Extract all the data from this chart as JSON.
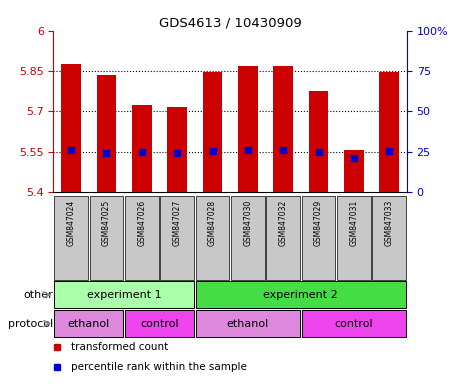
{
  "title": "GDS4613 / 10430909",
  "samples": [
    "GSM847024",
    "GSM847025",
    "GSM847026",
    "GSM847027",
    "GSM847028",
    "GSM847030",
    "GSM847032",
    "GSM847029",
    "GSM847031",
    "GSM847033"
  ],
  "transformed_counts": [
    5.875,
    5.835,
    5.725,
    5.718,
    5.845,
    5.867,
    5.87,
    5.775,
    5.555,
    5.845
  ],
  "percentile_ranks_val": [
    5.556,
    5.545,
    5.548,
    5.545,
    5.552,
    5.556,
    5.556,
    5.548,
    5.528,
    5.552
  ],
  "ylim_left": [
    5.4,
    6.0
  ],
  "ylim_right": [
    0,
    100
  ],
  "yticks_left": [
    5.4,
    5.55,
    5.7,
    5.85,
    6.0
  ],
  "yticks_left_labels": [
    "5.4",
    "5.55",
    "5.7",
    "5.85",
    "6"
  ],
  "yticks_right": [
    0,
    25,
    50,
    75,
    100
  ],
  "yticks_right_labels": [
    "0",
    "25",
    "50",
    "75",
    "100%"
  ],
  "bar_color": "#cc0000",
  "dot_color": "#0000cc",
  "sample_bg_color": "#c8c8c8",
  "other_groups": [
    {
      "label": "experiment 1",
      "start": 0,
      "end": 4,
      "color": "#aaffaa"
    },
    {
      "label": "experiment 2",
      "start": 4,
      "end": 10,
      "color": "#44dd44"
    }
  ],
  "protocol_groups": [
    {
      "label": "ethanol",
      "start": 0,
      "end": 2,
      "color": "#dd88dd"
    },
    {
      "label": "control",
      "start": 2,
      "end": 4,
      "color": "#ee44ee"
    },
    {
      "label": "ethanol",
      "start": 4,
      "end": 7,
      "color": "#dd88dd"
    },
    {
      "label": "control",
      "start": 7,
      "end": 10,
      "color": "#ee44ee"
    }
  ],
  "legend_items": [
    {
      "label": "transformed count",
      "color": "#cc0000"
    },
    {
      "label": "percentile rank within the sample",
      "color": "#0000cc"
    }
  ]
}
